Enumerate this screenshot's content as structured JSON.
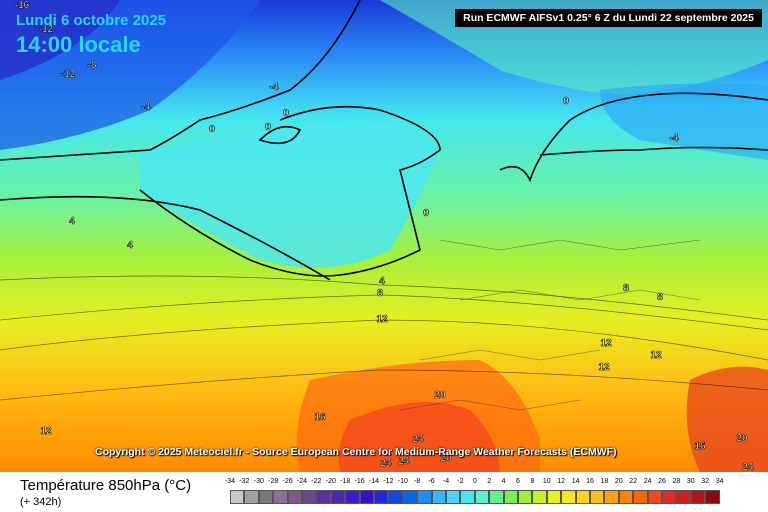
{
  "header": {
    "date": "Lundi 6 octobre 2025",
    "time": "14:00 locale",
    "run": "Run ECMWF AIFSv1 0.25° 6 Z du Lundi 22 septembre 2025"
  },
  "copyright": "Copyright © 2025 Meteociel.fr - Source European Centre for Medium-Range Weather Forecasts (ECMWF)",
  "footer": {
    "parameter": "Température 850hPa (°C)",
    "lead_time": "(+ 342h)"
  },
  "scale": {
    "values": [
      "-34",
      "-32",
      "-30",
      "-28",
      "-26",
      "-24",
      "-22",
      "-20",
      "-18",
      "-16",
      "-14",
      "-12",
      "-10",
      "-8",
      "-6",
      "-4",
      "-2",
      "0",
      "2",
      "4",
      "6",
      "8",
      "10",
      "12",
      "14",
      "16",
      "18",
      "20",
      "22",
      "24",
      "26",
      "28",
      "30",
      "32",
      "34"
    ],
    "colors": [
      "#c8c8c8",
      "#a0a0a0",
      "#787878",
      "#8c6e9b",
      "#7d5a8c",
      "#6e468c",
      "#5a32a0",
      "#4b28b4",
      "#3c1ec8",
      "#2d14d2",
      "#1e28dc",
      "#1446e6",
      "#0a64f0",
      "#1e8cff",
      "#3cb4ff",
      "#50d2ff",
      "#46e6f0",
      "#5ef0c8",
      "#64f08c",
      "#78f050",
      "#a0f032",
      "#c8f028",
      "#e6f01e",
      "#f5e61e",
      "#ffd21e",
      "#ffbe14",
      "#ffa00a",
      "#ff8200",
      "#ff6400",
      "#f5461e",
      "#e62828",
      "#d21e1e",
      "#b41414",
      "#8c0a0a",
      "#5a0000"
    ]
  },
  "map": {
    "isotherm_labels": [
      {
        "text": "-16"
      },
      {
        "text": "-12"
      },
      {
        "text": "-12"
      },
      {
        "text": "-8"
      },
      {
        "text": "-4"
      },
      {
        "text": "-4"
      },
      {
        "text": "0"
      },
      {
        "text": "0"
      },
      {
        "text": "0"
      },
      {
        "text": "0"
      },
      {
        "text": "-4"
      },
      {
        "text": "0"
      },
      {
        "text": "4"
      },
      {
        "text": "4"
      },
      {
        "text": "4"
      },
      {
        "text": "8"
      },
      {
        "text": "12"
      },
      {
        "text": "8"
      },
      {
        "text": "8"
      },
      {
        "text": "12"
      },
      {
        "text": "12"
      },
      {
        "text": "12"
      },
      {
        "text": "12"
      },
      {
        "text": "16"
      },
      {
        "text": "20"
      },
      {
        "text": "24"
      },
      {
        "text": "24"
      },
      {
        "text": "24"
      },
      {
        "text": "20"
      },
      {
        "text": "16"
      },
      {
        "text": "20"
      },
      {
        "text": "24"
      }
    ]
  }
}
